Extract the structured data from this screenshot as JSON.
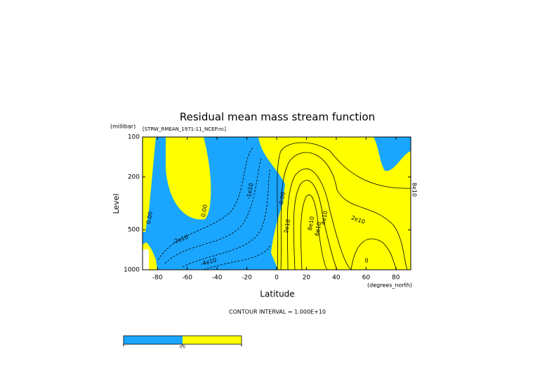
{
  "chart_data": {
    "type": "contour",
    "title": "Residual mean mass stream function",
    "subtitle": "[STRW_RMEAN_1971-11_NCEP.nc]",
    "x_label": "Latitude",
    "x_unit": "(degrees_north)",
    "y_label": "Level",
    "y_unit": "(millibar)",
    "xlim": [
      -90,
      90
    ],
    "xticks": [
      -80,
      -60,
      -40,
      -20,
      0,
      20,
      40,
      60,
      80
    ],
    "ylim": [
      1000,
      100
    ],
    "yticks": [
      100,
      200,
      500,
      1000
    ],
    "y_log": true,
    "negative_color": "#1aa6ff",
    "positive_color": "#ffff00",
    "contour_labels": [
      "0.00",
      "0.00",
      "-1e10",
      "0.00",
      "-2e10",
      "-4e10",
      "2e10",
      "8e10",
      "6e10",
      "4e10",
      "2e10",
      "0",
      "8e10"
    ],
    "note": "CONTOUR INTERVAL = 1.000E+10",
    "colorbar": {
      "labels": [
        "0.0"
      ]
    }
  }
}
